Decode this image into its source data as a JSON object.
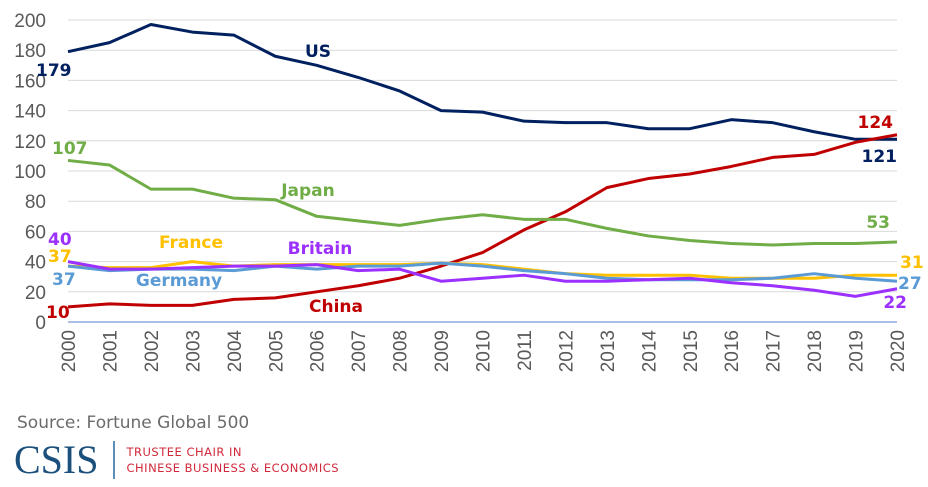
{
  "chart_data": {
    "type": "line",
    "title": "",
    "xlabel": "",
    "ylabel": "",
    "ylim": [
      0,
      200
    ],
    "yticks": [
      0,
      20,
      40,
      60,
      80,
      100,
      120,
      140,
      160,
      180,
      200
    ],
    "grid": true,
    "legend": "inline labels",
    "x": [
      "2000",
      "2001",
      "2002",
      "2003",
      "2004",
      "2005",
      "2006",
      "2007",
      "2008",
      "2009",
      "2010",
      "2011",
      "2012",
      "2013",
      "2014",
      "2015",
      "2016",
      "2017",
      "2018",
      "2019",
      "2020"
    ],
    "series": [
      {
        "name": "US",
        "color": "#002060",
        "start_label": "179",
        "end_label": "121",
        "values": [
          179,
          185,
          197,
          192,
          190,
          176,
          170,
          162,
          153,
          140,
          139,
          133,
          132,
          132,
          128,
          128,
          134,
          132,
          126,
          121,
          121
        ]
      },
      {
        "name": "China",
        "color": "#C00000",
        "start_label": "10",
        "end_label": "124",
        "values": [
          10,
          12,
          11,
          11,
          15,
          16,
          20,
          24,
          29,
          37,
          46,
          61,
          73,
          89,
          95,
          98,
          103,
          109,
          111,
          119,
          124
        ]
      },
      {
        "name": "Japan",
        "color": "#70AD47",
        "start_label": "107",
        "end_label": "53",
        "values": [
          107,
          104,
          88,
          88,
          82,
          81,
          70,
          67,
          64,
          68,
          71,
          68,
          68,
          62,
          57,
          54,
          52,
          51,
          52,
          52,
          53
        ]
      },
      {
        "name": "France",
        "color": "#FFC000",
        "start_label": "37",
        "end_label": "31",
        "values": [
          37,
          36,
          36,
          40,
          37,
          38,
          38,
          38,
          38,
          39,
          38,
          35,
          32,
          31,
          31,
          31,
          29,
          29,
          29,
          31,
          31
        ]
      },
      {
        "name": "Germany",
        "color": "#5B9BD5",
        "start_label": "37",
        "end_label": "27",
        "values": [
          37,
          34,
          35,
          35,
          34,
          37,
          35,
          37,
          37,
          39,
          37,
          34,
          32,
          29,
          28,
          28,
          28,
          29,
          32,
          29,
          27
        ]
      },
      {
        "name": "Britain",
        "color": "#9B30FF",
        "start_label": "40",
        "end_label": "22",
        "values": [
          40,
          35,
          35,
          36,
          37,
          37,
          38,
          34,
          35,
          27,
          29,
          31,
          27,
          27,
          28,
          29,
          26,
          24,
          21,
          17,
          22
        ]
      }
    ]
  },
  "footer": {
    "source": "Source:  Fortune Global 500",
    "logo_text": "CSIS",
    "chair_line1": "TRUSTEE CHAIR IN",
    "chair_line2": "CHINESE BUSINESS & ECONOMICS"
  }
}
